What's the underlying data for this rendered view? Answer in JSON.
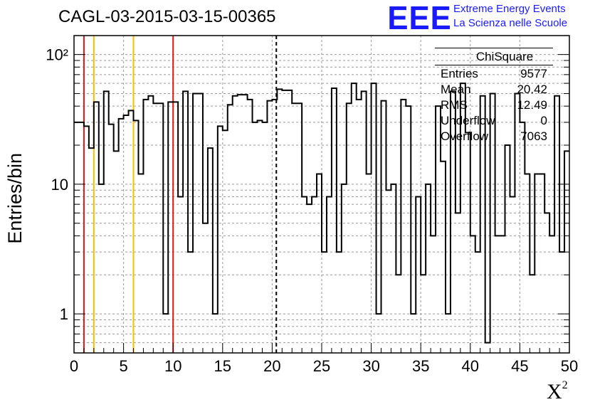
{
  "title": "CAGL-03-2015-03-15-00365",
  "logo": {
    "mark": "EEE",
    "line1": "Extreme Energy Events",
    "line2": "La Scienza nelle Scuole"
  },
  "stats": {
    "name": "ChiSquare",
    "rows": [
      {
        "label": "Entries",
        "value": "9577"
      },
      {
        "label": "Mean",
        "value": "20.42"
      },
      {
        "label": "RMS",
        "value": "12.49"
      },
      {
        "label": "Underflow",
        "value": "0"
      },
      {
        "label": "Overflow",
        "value": "7063"
      }
    ]
  },
  "colors": {
    "red_line": "#e01818",
    "yellow_line": "#f5c000",
    "histogram": "#000000",
    "logo": "#1a1aff"
  },
  "chart_data": {
    "type": "histogram",
    "title": "CAGL-03-2015-03-15-00365",
    "xlabel": "X",
    "xlabel_superscript": "2",
    "ylabel": "Entries/bin",
    "xlim": [
      0,
      50
    ],
    "ylim": [
      0.5,
      140
    ],
    "yscale": "log",
    "bin_width": 1,
    "x_ticks": [
      0,
      5,
      10,
      15,
      20,
      25,
      30,
      35,
      40,
      45,
      50
    ],
    "x_tick_labels": [
      "0",
      "5",
      "10",
      "15",
      "20",
      "25",
      "30",
      "35",
      "40",
      "45",
      "50"
    ],
    "y_ticks": [
      1,
      10,
      100
    ],
    "y_tick_labels": [
      "1",
      "10",
      "10²"
    ],
    "bin_counts": [
      30,
      30,
      28,
      19,
      43,
      10,
      52,
      29,
      18,
      32,
      34,
      37,
      31,
      12,
      45,
      48,
      42,
      42,
      1,
      43,
      43,
      8,
      52,
      3,
      50,
      50,
      5,
      19,
      1,
      28,
      26,
      41,
      48,
      49,
      49,
      45,
      30,
      31,
      30,
      44,
      45,
      54,
      53,
      53,
      42,
      42,
      8,
      7,
      8,
      12,
      3,
      8,
      55,
      3,
      10,
      42,
      60,
      45,
      52,
      12,
      60,
      1,
      44,
      9,
      10,
      2,
      45,
      40,
      1,
      8,
      2,
      10,
      4,
      40,
      15,
      1,
      52,
      6,
      60,
      25,
      4,
      3,
      48,
      0.6,
      50,
      4,
      4,
      20,
      8,
      50,
      30,
      12,
      2,
      12,
      12,
      6,
      4,
      48,
      3,
      18
    ],
    "vertical_lines": [
      {
        "x": 1,
        "color": "red",
        "style": "solid"
      },
      {
        "x": 2,
        "color": "yellow",
        "style": "solid"
      },
      {
        "x": 6,
        "color": "yellow",
        "style": "solid"
      },
      {
        "x": 10,
        "color": "red",
        "style": "solid"
      },
      {
        "x": 20.42,
        "color": "black",
        "style": "dashed"
      }
    ],
    "grid": true
  }
}
